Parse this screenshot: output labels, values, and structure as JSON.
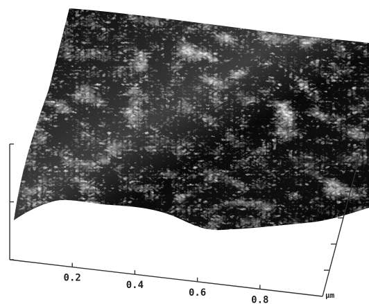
{
  "chart_data": {
    "type": "surface",
    "x_axis": {
      "ticks": [
        {
          "value": 0.2,
          "label": "0.2"
        },
        {
          "value": 0.4,
          "label": "0.4"
        },
        {
          "value": 0.6,
          "label": "0.6"
        },
        {
          "value": 0.8,
          "label": "0.8"
        }
      ],
      "unit": "µm",
      "range": [
        0,
        1.0
      ]
    },
    "y_axis": {
      "tick_count": 6,
      "range": [
        0,
        1.0
      ]
    },
    "z_axis": {
      "tick_count": 1
    },
    "surface": {
      "shading": "grayscale",
      "colors": {
        "light": "#f2f2f2",
        "mid": "#8a8a8a",
        "dark": "#1e1e1e"
      }
    }
  }
}
